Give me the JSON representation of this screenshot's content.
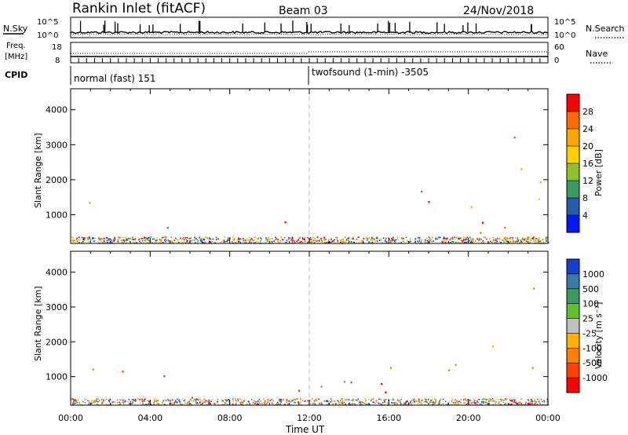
{
  "header": {
    "station": "Rankin Inlet (fitACF)",
    "beam": "Beam 03",
    "date": "24/Nov/2018"
  },
  "status_panel": {
    "nsky_label": "N.Sky",
    "nsearch_label": "N.Search",
    "freq_label": "Freq.",
    "freq_unit": "[MHz]",
    "nave_label": "Nave",
    "cpid_label": "CPID",
    "noise_left_ticks": [
      "10^5",
      "10^0"
    ],
    "noise_right_ticks": [
      "10^5",
      "10^0"
    ],
    "freq_left_ticks": [
      "18",
      "8"
    ],
    "freq_right_ticks": [
      "60",
      "0"
    ],
    "cpid_segments": [
      {
        "start_hour": 0,
        "text": "normal (fast) 151"
      },
      {
        "start_hour": 12,
        "text": "twofsound (1-min) -3505"
      }
    ]
  },
  "colorbars": {
    "power": {
      "label": "Power [dB]",
      "ticks": [
        "28",
        "24",
        "20",
        "16",
        "12",
        "8",
        "4"
      ],
      "colors": [
        "#ff0000",
        "#ff6a00",
        "#ffa500",
        "#ffd000",
        "#90c030",
        "#3a9a60",
        "#2a5aa8",
        "#0018ff"
      ]
    },
    "velocity": {
      "label": "Velocity [m s⁻¹]",
      "ticks": [
        "1000",
        "500",
        "100",
        "25",
        "-25",
        "-100",
        "-500",
        "-1000"
      ],
      "colors": [
        "#1a3fd0",
        "#3a7aa8",
        "#3a9a60",
        "#60c030",
        "#c0c0c0",
        "#ffb000",
        "#ff8000",
        "#ff4000",
        "#ff0000"
      ]
    }
  },
  "chart_data": [
    {
      "type": "heatmap",
      "title": "",
      "ylabel": "Slant Range [km]",
      "xlabel": "",
      "x_ticks": [
        "00:00",
        "04:00",
        "08:00",
        "12:00",
        "16:00",
        "20:00",
        "00:00"
      ],
      "y_ticks": [
        "1000",
        "2000",
        "3000",
        "4000"
      ],
      "xlim_hours": [
        0,
        24
      ],
      "ylim_km": [
        180,
        4600
      ],
      "colorbar": "power",
      "regions": [
        {
          "t0": 0.0,
          "t1": 3.3,
          "r0": 800,
          "r1": 1700,
          "level": "high"
        },
        {
          "t0": 1.0,
          "t1": 2.0,
          "r0": 300,
          "r1": 800,
          "level": "mid"
        },
        {
          "t0": 2.0,
          "t1": 3.3,
          "r0": 750,
          "r1": 1500,
          "level": "high"
        },
        {
          "t0": 3.3,
          "t1": 7.0,
          "r0": 300,
          "r1": 1100,
          "level": "mid"
        },
        {
          "t0": 5.0,
          "t1": 6.8,
          "r0": 280,
          "r1": 600,
          "level": "high"
        },
        {
          "t0": 7.0,
          "t1": 8.0,
          "r0": 280,
          "r1": 500,
          "level": "high"
        },
        {
          "t0": 10.3,
          "t1": 12.0,
          "r0": 400,
          "r1": 2000,
          "level": "high"
        },
        {
          "t0": 12.0,
          "t1": 24.0,
          "r0": 500,
          "r1": 1400,
          "level": "high"
        },
        {
          "t0": 12.0,
          "t1": 24.0,
          "r0": 1400,
          "r1": 2000,
          "level": "low"
        },
        {
          "t0": 19.5,
          "t1": 23.5,
          "r0": 1800,
          "r1": 2400,
          "level": "mid"
        },
        {
          "t0": 4.0,
          "t1": 6.0,
          "r0": 3400,
          "r1": 3550,
          "level": "mid"
        },
        {
          "t0": 11.0,
          "t1": 12.5,
          "r0": 3100,
          "r1": 3600,
          "level": "mid"
        },
        {
          "t0": 21.5,
          "t1": 23.7,
          "r0": 3000,
          "r1": 3800,
          "level": "low"
        }
      ]
    },
    {
      "type": "heatmap",
      "title": "",
      "ylabel": "Slant Range [km]",
      "xlabel": "Time UT",
      "x_ticks": [
        "00:00",
        "04:00",
        "08:00",
        "12:00",
        "16:00",
        "20:00",
        "00:00"
      ],
      "y_ticks": [
        "1000",
        "2000",
        "3000",
        "4000"
      ],
      "xlim_hours": [
        0,
        24
      ],
      "ylim_km": [
        180,
        4600
      ],
      "colorbar": "velocity",
      "regions": [
        {
          "t0": 0.0,
          "t1": 3.3,
          "r0": 700,
          "r1": 1700,
          "level": "neg"
        },
        {
          "t0": 3.3,
          "t1": 8.0,
          "r0": 300,
          "r1": 1100,
          "level": "pos"
        },
        {
          "t0": 10.3,
          "t1": 12.0,
          "r0": 500,
          "r1": 2000,
          "level": "neg"
        },
        {
          "t0": 12.0,
          "t1": 24.0,
          "r0": 500,
          "r1": 1400,
          "level": "neg"
        },
        {
          "t0": 12.0,
          "t1": 24.0,
          "r0": 500,
          "r1": 1000,
          "level": "pos"
        },
        {
          "t0": 16.0,
          "t1": 20.0,
          "r0": 1000,
          "r1": 1600,
          "level": "zero"
        },
        {
          "t0": 20.0,
          "t1": 24.0,
          "r0": 1500,
          "r1": 2200,
          "level": "neg"
        },
        {
          "t0": 4.0,
          "t1": 6.0,
          "r0": 3400,
          "r1": 3550,
          "level": "pos"
        },
        {
          "t0": 11.0,
          "t1": 12.5,
          "r0": 3100,
          "r1": 3600,
          "level": "pos"
        },
        {
          "t0": 21.5,
          "t1": 23.7,
          "r0": 3000,
          "r1": 3800,
          "level": "neg"
        }
      ]
    }
  ]
}
